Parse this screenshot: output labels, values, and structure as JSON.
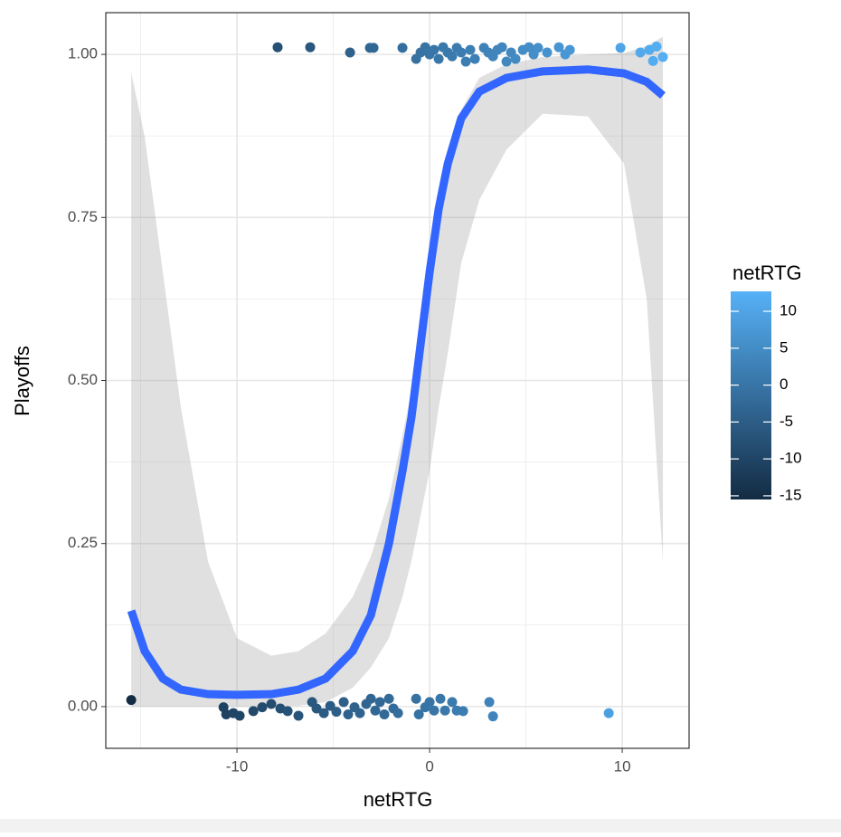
{
  "chart_data": {
    "type": "scatter",
    "x_label": "netRTG",
    "y_label": "Playoffs",
    "xlim": [
      -16.81,
      13.47
    ],
    "ylim": [
      -0.064,
      1.064
    ],
    "xticks": [
      -10,
      0,
      10
    ],
    "yticks": [
      {
        "value": 0,
        "label": "0.00"
      },
      {
        "value": 0.25,
        "label": "0.25"
      },
      {
        "value": 0.5,
        "label": "0.50"
      },
      {
        "value": 0.75,
        "label": "0.75"
      },
      {
        "value": 1,
        "label": "1.00"
      }
    ],
    "x_minor_grid": [
      -15,
      -5,
      5
    ],
    "y_minor_grid": [
      0.125,
      0.375,
      0.625,
      0.875
    ],
    "grid": true,
    "points": {
      "x": [
        -7.89,
        -6.2,
        -4.13,
        -3.1,
        -2.91,
        -1.41,
        -0.7,
        -0.47,
        -0.23,
        0,
        0.23,
        0.47,
        0.7,
        0.94,
        1.17,
        1.41,
        1.64,
        1.88,
        2.11,
        2.35,
        2.82,
        3.05,
        3.29,
        3.52,
        3.76,
        3.99,
        4.23,
        4.46,
        4.84,
        5.16,
        5.4,
        5.63,
        6.1,
        6.71,
        7.04,
        7.28,
        9.91,
        10.94,
        11.41,
        11.78,
        12.11,
        11.6,
        -15.49,
        -10.7,
        -10.56,
        -10.19,
        -9.86,
        -9.15,
        -8.69,
        -8.22,
        -7.75,
        -7.37,
        -6.81,
        -6.1,
        -5.87,
        -5.49,
        -5.16,
        -4.84,
        -4.46,
        -4.23,
        -3.9,
        -3.62,
        -3.29,
        -3.05,
        -2.82,
        -2.58,
        -2.35,
        -2.11,
        -1.88,
        -1.64,
        -0.7,
        -0.56,
        -0.23,
        0,
        0.23,
        0.56,
        0.8,
        1.17,
        1.41,
        1.74,
        3.1,
        3.29,
        9.3
      ],
      "y": [
        1.011,
        1.011,
        1.003,
        1.01,
        1.01,
        1.01,
        0.993,
        1.003,
        1.011,
        1.0,
        1.007,
        0.993,
        1.011,
        1.003,
        0.997,
        1.01,
        1.003,
        0.989,
        1.007,
        0.993,
        1.01,
        1.003,
        0.997,
        1.007,
        1.011,
        0.989,
        1.003,
        0.993,
        1.007,
        1.011,
        1.0,
        1.01,
        1.003,
        1.011,
        1.0,
        1.007,
        1.01,
        1.003,
        1.007,
        1.012,
        0.996,
        0.99,
        0.01,
        -0.001,
        -0.012,
        -0.01,
        -0.014,
        -0.007,
        -0.001,
        0.004,
        -0.003,
        -0.007,
        -0.014,
        0.007,
        -0.003,
        -0.01,
        0.001,
        -0.008,
        0.007,
        -0.012,
        -0.001,
        -0.01,
        0.004,
        0.012,
        -0.006,
        0.007,
        -0.012,
        0.012,
        -0.003,
        -0.01,
        0.012,
        -0.012,
        -0.001,
        0.007,
        -0.006,
        0.012,
        -0.006,
        0.007,
        -0.006,
        -0.007,
        0.007,
        -0.015,
        -0.01
      ]
    },
    "smooth": {
      "color": "#3366FF",
      "band_color": "#999999",
      "x": [
        -15.49,
        -14.79,
        -13.85,
        -12.91,
        -11.5,
        -10.0,
        -8.22,
        -6.81,
        -5.4,
        -3.99,
        -3.05,
        -2.11,
        -1.41,
        -0.94,
        -0.47,
        0,
        0.47,
        0.94,
        1.64,
        2.58,
        3.99,
        5.87,
        8.22,
        10.09,
        11.27,
        12.11
      ],
      "y": [
        0.147,
        0.085,
        0.043,
        0.026,
        0.019,
        0.018,
        0.019,
        0.026,
        0.043,
        0.085,
        0.14,
        0.25,
        0.361,
        0.444,
        0.555,
        0.666,
        0.763,
        0.832,
        0.902,
        0.943,
        0.964,
        0.974,
        0.977,
        0.971,
        0.958,
        0.937
      ],
      "lower": [
        0,
        0,
        0,
        0,
        0,
        0,
        0,
        0.001,
        0.007,
        0.029,
        0.06,
        0.105,
        0.168,
        0.224,
        0.293,
        0.362,
        0.458,
        0.541,
        0.68,
        0.777,
        0.854,
        0.909,
        0.905,
        0.833,
        0.625,
        0.222
      ],
      "upper": [
        0.972,
        0.874,
        0.666,
        0.458,
        0.222,
        0.105,
        0.078,
        0.085,
        0.112,
        0.168,
        0.23,
        0.319,
        0.416,
        0.485,
        0.569,
        0.666,
        0.763,
        0.832,
        0.915,
        0.964,
        0.985,
        0.996,
        1.0,
        1.002,
        1.013,
        1.027
      ]
    },
    "legend": {
      "title": "netRTG",
      "lim": [
        -15.5,
        12.7
      ],
      "low": "#132B43",
      "high": "#56B1F7",
      "ticks": [
        -15,
        -10,
        -5,
        0,
        5,
        10
      ]
    }
  }
}
